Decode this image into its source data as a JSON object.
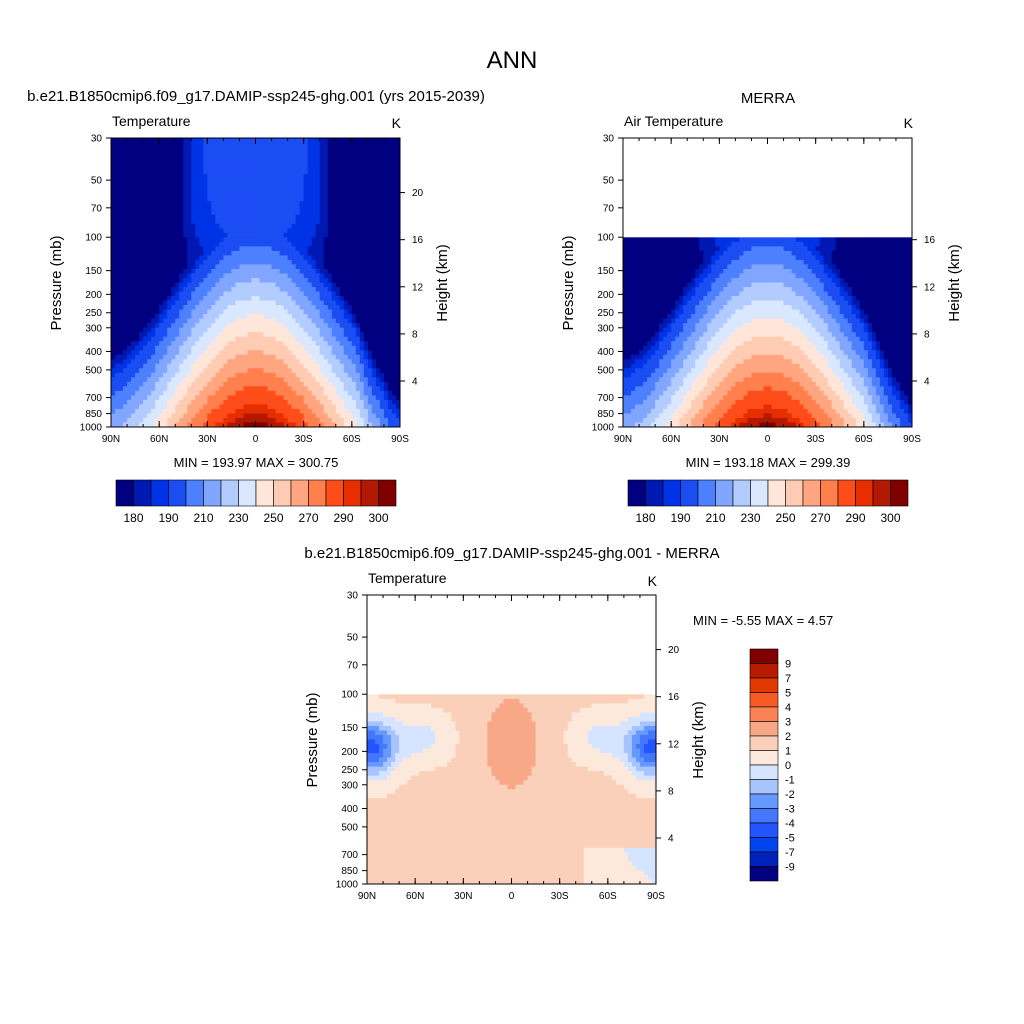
{
  "figure_title": "ANN",
  "colors": {
    "temp_palette": [
      "#000080",
      "#0019b3",
      "#0033e6",
      "#1a4df2",
      "#4d80ff",
      "#80a6ff",
      "#b3ccff",
      "#d9e8ff",
      "#ffe6d9",
      "#ffccb3",
      "#ffa680",
      "#ff804d",
      "#ff4d1a",
      "#e62e00",
      "#b31900",
      "#800000"
    ],
    "diff_palette": [
      "#000080",
      "#0022bb",
      "#0044ee",
      "#2255ff",
      "#4477ff",
      "#6699ff",
      "#a8c4ff",
      "#d5e5ff",
      "#fde8dc",
      "#fbd0bb",
      "#f8a886",
      "#fb8254",
      "#f85a24",
      "#e03a00",
      "#b81c00",
      "#800000"
    ]
  },
  "chart_data": [
    {
      "type": "heatmap",
      "title": "b.e21.B1850cmip6.f09_g17.DAMIP-ssp245-ghg.001 (yrs 2015-2039)",
      "left_string": "Temperature",
      "right_string": "K",
      "ylabel": "Pressure (mb)",
      "y2label": "Height (km)",
      "x_ticks": [
        "90N",
        "60N",
        "30N",
        "0",
        "30S",
        "60S",
        "90S"
      ],
      "x_range": [
        90,
        -90
      ],
      "y_ticks": [
        "30",
        "50",
        "70",
        "100",
        "150",
        "200",
        "250",
        "300",
        "400",
        "500",
        "700",
        "850",
        "1000"
      ],
      "y_range_mb": [
        1000,
        30
      ],
      "height_ticks": [
        "20",
        "16",
        "12",
        "8",
        "4"
      ],
      "min_max_text": "MIN = 193.97  MAX = 300.75",
      "data_min": 193.97,
      "data_max": 300.75,
      "colorbar_labels": [
        "180",
        "190",
        "210",
        "230",
        "250",
        "270",
        "290",
        "300"
      ]
    },
    {
      "type": "heatmap",
      "title": "MERRA",
      "left_string": "Air Temperature",
      "right_string": "K",
      "ylabel": "Pressure (mb)",
      "y2label": "Height (km)",
      "x_ticks": [
        "90N",
        "60N",
        "30N",
        "0",
        "30S",
        "60S",
        "90S"
      ],
      "x_range": [
        90,
        -90
      ],
      "y_ticks": [
        "30",
        "50",
        "70",
        "100",
        "150",
        "200",
        "250",
        "300",
        "400",
        "500",
        "700",
        "850",
        "1000"
      ],
      "y_range_mb": [
        1000,
        30
      ],
      "data_top_mb": 100,
      "height_ticks": [
        "16",
        "12",
        "8",
        "4"
      ],
      "min_max_text": "MIN = 193.18  MAX = 299.39",
      "data_min": 193.18,
      "data_max": 299.39,
      "colorbar_labels": [
        "180",
        "190",
        "210",
        "230",
        "250",
        "270",
        "290",
        "300"
      ]
    },
    {
      "type": "heatmap",
      "title": "b.e21.B1850cmip6.f09_g17.DAMIP-ssp245-ghg.001 - MERRA",
      "left_string": "Temperature",
      "right_string": "K",
      "ylabel": "Pressure (mb)",
      "y2label": "Height (km)",
      "x_ticks": [
        "90N",
        "60N",
        "30N",
        "0",
        "30S",
        "60S",
        "90S"
      ],
      "x_range": [
        90,
        -90
      ],
      "y_ticks": [
        "30",
        "50",
        "70",
        "100",
        "150",
        "200",
        "250",
        "300",
        "400",
        "500",
        "700",
        "850",
        "1000"
      ],
      "y_range_mb": [
        1000,
        30
      ],
      "data_top_mb": 100,
      "height_ticks": [
        "20",
        "16",
        "12",
        "8",
        "4"
      ],
      "min_max_text": "MIN =  -5.55  MAX =   4.57",
      "data_min": -5.55,
      "data_max": 4.57,
      "colorbar_labels": [
        "9",
        "7",
        "5",
        "4",
        "3",
        "2",
        "1",
        "0",
        "-1",
        "-2",
        "-3",
        "-4",
        "-5",
        "-7",
        "-9"
      ]
    }
  ]
}
